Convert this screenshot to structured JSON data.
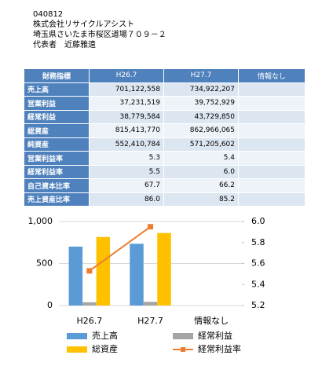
{
  "header": {
    "code": "040812",
    "company": "株式会社リサイクルアシスト",
    "address": "埼玉県さいたま市桜区道場７０９－２",
    "representative": "代表者　近藤雅遠"
  },
  "table": {
    "columns": [
      "財務指標",
      "H26.7",
      "H27.7",
      "情報なし"
    ],
    "rows": [
      {
        "label": "売上高",
        "values": [
          "701,122,558",
          "734,922,207"
        ]
      },
      {
        "label": "営業利益",
        "values": [
          "37,231,519",
          "39,752,929"
        ]
      },
      {
        "label": "経常利益",
        "values": [
          "38,779,584",
          "43,729,850"
        ]
      },
      {
        "label": "総資産",
        "values": [
          "815,413,770",
          "862,966,065"
        ]
      },
      {
        "label": "純資産",
        "values": [
          "552,410,784",
          "571,205,602"
        ]
      },
      {
        "label": "営業利益率",
        "values": [
          "5.3",
          "5.4"
        ]
      },
      {
        "label": "経常利益率",
        "values": [
          "5.5",
          "6.0"
        ]
      },
      {
        "label": "自己資本比率",
        "values": [
          "67.7",
          "66.2"
        ]
      },
      {
        "label": "売上資産比率",
        "values": [
          "86.0",
          "85.2"
        ]
      }
    ]
  },
  "chart_data": {
    "type": "bar",
    "categories": [
      "H26.7",
      "H27.7",
      "情報なし"
    ],
    "series": [
      {
        "name": "売上高",
        "color": "#5b9bd5",
        "values": [
          701.1,
          734.9,
          null
        ]
      },
      {
        "name": "経常利益",
        "color": "#a5a5a5",
        "values": [
          38.8,
          43.7,
          null
        ]
      },
      {
        "name": "総資産",
        "color": "#ffc000",
        "values": [
          815.4,
          863.0,
          null
        ]
      },
      {
        "name": "経常利益率",
        "color": "#ed7d31",
        "type": "line",
        "axis": "y2",
        "values": [
          5.53,
          5.95,
          null
        ]
      }
    ],
    "ylim": [
      0,
      1000
    ],
    "yticks": [
      0,
      500,
      {
        "value": 1000,
        "label": "1,000"
      }
    ],
    "y2lim": [
      5.2,
      6.0
    ],
    "y2ticks": [
      5.2,
      5.4,
      5.6,
      5.8,
      {
        "value": 6,
        "label": "6.0"
      }
    ],
    "grid": true
  }
}
